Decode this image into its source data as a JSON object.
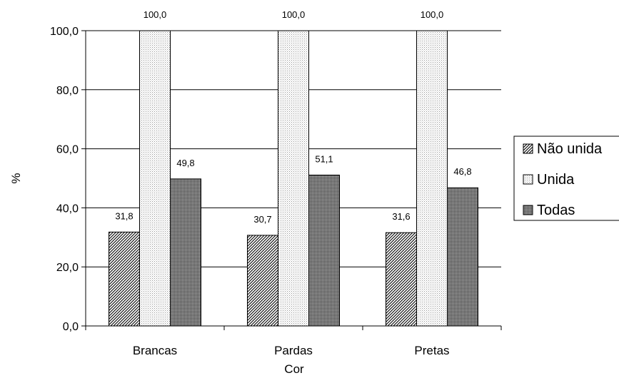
{
  "chart_data": {
    "type": "bar",
    "title": "",
    "xlabel": "Cor",
    "ylabel": "%",
    "categories": [
      "Brancas",
      "Pardas",
      "Pretas"
    ],
    "series": [
      {
        "name": "Não unida",
        "values": [
          31.8,
          30.7,
          31.6
        ],
        "labels": [
          "31,8",
          "30,7",
          "31,6"
        ]
      },
      {
        "name": "Unida",
        "values": [
          100.0,
          100.0,
          100.0
        ],
        "labels": [
          "100,0",
          "100,0",
          "100,0"
        ]
      },
      {
        "name": "Todas",
        "values": [
          49.8,
          51.1,
          46.8
        ],
        "labels": [
          "49,8",
          "51,1",
          "46,8"
        ]
      }
    ],
    "ylim": [
      0,
      100
    ],
    "yticks": [
      0,
      20,
      40,
      60,
      80,
      100
    ],
    "ytick_labels": [
      "0,0",
      "20,0",
      "40,0",
      "60,0",
      "80,0",
      "100,0"
    ],
    "grid": true,
    "legend_position": "right"
  }
}
